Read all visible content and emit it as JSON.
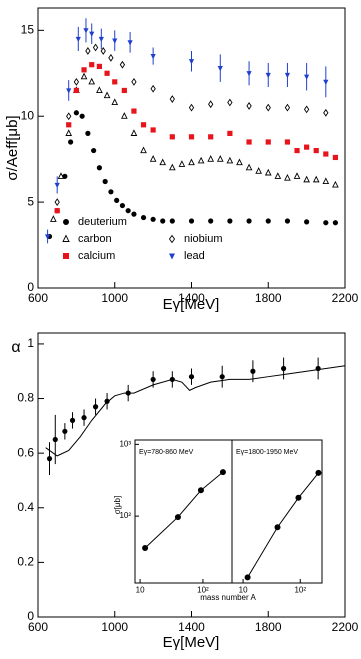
{
  "chart_data": [
    {
      "type": "scatter",
      "x_label": "Eγ[MeV]",
      "y_label": "σ/Aeff[μb]",
      "xlim": [
        600,
        2200
      ],
      "xticks": [
        600,
        1000,
        1400,
        1800,
        2200
      ],
      "ylim": [
        0,
        16.3
      ],
      "yticks": [
        0,
        5,
        10,
        15
      ],
      "grid": false,
      "legend": "lower-left",
      "series": [
        {
          "name": "deuterium",
          "color": "#000000",
          "marker": "circle",
          "x": [
            660,
            700,
            740,
            770,
            800,
            830,
            860,
            890,
            920,
            950,
            980,
            1010,
            1040,
            1070,
            1100,
            1150,
            1200,
            1250,
            1300,
            1400,
            1500,
            1600,
            1700,
            1800,
            1900,
            2000,
            2100,
            2150
          ],
          "values": [
            3.0,
            4.5,
            6.5,
            8.5,
            10.2,
            10.0,
            9.0,
            8.0,
            7.0,
            6.2,
            5.6,
            5.1,
            4.8,
            4.5,
            4.3,
            4.1,
            4.0,
            3.9,
            3.9,
            3.9,
            3.9,
            3.9,
            3.9,
            3.9,
            3.9,
            3.85,
            3.8,
            3.8
          ]
        },
        {
          "name": "carbon",
          "color": "#000000",
          "marker": "triangle-open",
          "x": [
            680,
            720,
            760,
            800,
            840,
            880,
            920,
            960,
            1000,
            1050,
            1100,
            1150,
            1200,
            1250,
            1300,
            1350,
            1400,
            1450,
            1500,
            1550,
            1600,
            1650,
            1700,
            1750,
            1800,
            1850,
            1900,
            1950,
            2000,
            2050,
            2100,
            2150
          ],
          "values": [
            4.0,
            6.5,
            9.0,
            11.5,
            12.3,
            12.0,
            11.5,
            11.2,
            10.8,
            10.0,
            9.0,
            8.0,
            7.5,
            7.3,
            7.0,
            7.2,
            7.3,
            7.4,
            7.5,
            7.5,
            7.4,
            7.3,
            7.0,
            6.8,
            6.7,
            6.5,
            6.4,
            6.5,
            6.3,
            6.3,
            6.2,
            6.0
          ]
        },
        {
          "name": "niobium",
          "color": "#000000",
          "marker": "diamond-open",
          "x": [
            700,
            760,
            800,
            860,
            900,
            940,
            980,
            1040,
            1100,
            1200,
            1300,
            1400,
            1500,
            1600,
            1700,
            1800,
            1900,
            2000,
            2100
          ],
          "values": [
            5.0,
            10.0,
            12.0,
            13.8,
            14.0,
            13.8,
            13.4,
            13.0,
            12.0,
            11.6,
            11.0,
            10.5,
            10.7,
            10.8,
            10.6,
            10.5,
            10.5,
            10.4,
            10.2
          ]
        },
        {
          "name": "calcium",
          "color": "#e8141c",
          "marker": "square",
          "x": [
            700,
            760,
            800,
            840,
            880,
            920,
            960,
            1000,
            1050,
            1100,
            1150,
            1200,
            1300,
            1400,
            1500,
            1600,
            1700,
            1800,
            1900,
            1950,
            2000,
            2050,
            2100,
            2150
          ],
          "values": [
            4.5,
            9.5,
            11.5,
            12.7,
            13.0,
            12.9,
            12.5,
            12.0,
            11.5,
            10.3,
            9.5,
            9.2,
            8.8,
            8.8,
            8.8,
            9.0,
            8.5,
            8.5,
            8.5,
            8.0,
            8.2,
            8.0,
            7.8,
            7.6
          ]
        },
        {
          "name": "lead",
          "color": "#1f3fd0",
          "marker": "triangle-down",
          "x": [
            650,
            700,
            760,
            810,
            850,
            880,
            930,
            1000,
            1080,
            1200,
            1400,
            1550,
            1700,
            1800,
            1900,
            2000,
            2100
          ],
          "values": [
            3.0,
            6.0,
            11.5,
            14.5,
            15.0,
            14.8,
            14.5,
            14.4,
            14.3,
            13.5,
            13.2,
            12.8,
            12.5,
            12.4,
            12.4,
            12.3,
            12.0
          ],
          "errors": [
            0.4,
            0.5,
            0.6,
            0.7,
            0.7,
            0.6,
            0.6,
            0.6,
            0.6,
            0.5,
            0.6,
            0.8,
            0.7,
            0.7,
            0.7,
            0.8,
            0.9
          ]
        }
      ]
    },
    {
      "type": "scatter",
      "x_label": "Eγ[MeV]",
      "y_label": "α",
      "xlim": [
        600,
        2200
      ],
      "xticks": [
        600,
        1000,
        1400,
        1800,
        2200
      ],
      "ylim": [
        0,
        1.04
      ],
      "yticks": [
        0,
        0.2,
        0.4,
        0.6,
        0.8,
        1
      ],
      "grid": false,
      "series": [
        {
          "color": "#000000",
          "marker": "circle",
          "x": [
            660,
            690,
            740,
            780,
            840,
            900,
            960,
            1070,
            1200,
            1300,
            1400,
            1560,
            1720,
            1880,
            2060
          ],
          "values": [
            0.58,
            0.65,
            0.68,
            0.72,
            0.73,
            0.77,
            0.79,
            0.82,
            0.87,
            0.87,
            0.88,
            0.88,
            0.9,
            0.91,
            0.91
          ],
          "errors": [
            0.06,
            0.09,
            0.03,
            0.03,
            0.03,
            0.03,
            0.03,
            0.03,
            0.03,
            0.03,
            0.03,
            0.04,
            0.04,
            0.04,
            0.04
          ]
        },
        {
          "color": "#000000",
          "style": "line",
          "x": [
            640,
            700,
            760,
            820,
            880,
            950,
            1000,
            1050,
            1100,
            1200,
            1300,
            1350,
            1390,
            1420,
            1500,
            1600,
            1700,
            1800,
            1900,
            2000,
            2100,
            2200
          ],
          "values": [
            0.62,
            0.59,
            0.61,
            0.66,
            0.72,
            0.78,
            0.81,
            0.82,
            0.82,
            0.85,
            0.87,
            0.86,
            0.83,
            0.84,
            0.86,
            0.87,
            0.87,
            0.88,
            0.89,
            0.9,
            0.91,
            0.92
          ]
        }
      ]
    },
    {
      "type": "scatter",
      "x_label": "mass number A",
      "y_label": "σ[μb]",
      "annotation": "Eγ=780-860 MeV",
      "xscale": "log",
      "yscale": "log",
      "xlim": [
        8.3,
        290
      ],
      "ylim": [
        11.7,
        1150
      ],
      "xticks": [
        10,
        {
          "value": 100,
          "label": "10²"
        }
      ],
      "yticks": [
        {
          "value": 100,
          "label": "10²"
        },
        {
          "value": 1000,
          "label": "10³"
        }
      ],
      "series": [
        {
          "color": "#000000",
          "marker": "circle",
          "fit": true,
          "x": [
            12,
            40,
            93,
            208
          ],
          "values": [
            36,
            97,
            229,
            410
          ]
        }
      ]
    },
    {
      "type": "scatter",
      "annotation": "Eγ=1800-1950 MeV",
      "xscale": "log",
      "yscale": "log",
      "xlim": [
        6.4,
        240
      ],
      "ylim": [
        11.7,
        1150
      ],
      "xticks": [
        10,
        {
          "value": 100,
          "label": "10²"
        }
      ],
      "series": [
        {
          "color": "#000000",
          "marker": "circle",
          "fit": true,
          "x": [
            12,
            40,
            93,
            208
          ],
          "values": [
            14,
            70,
            180,
            400
          ]
        }
      ]
    }
  ]
}
